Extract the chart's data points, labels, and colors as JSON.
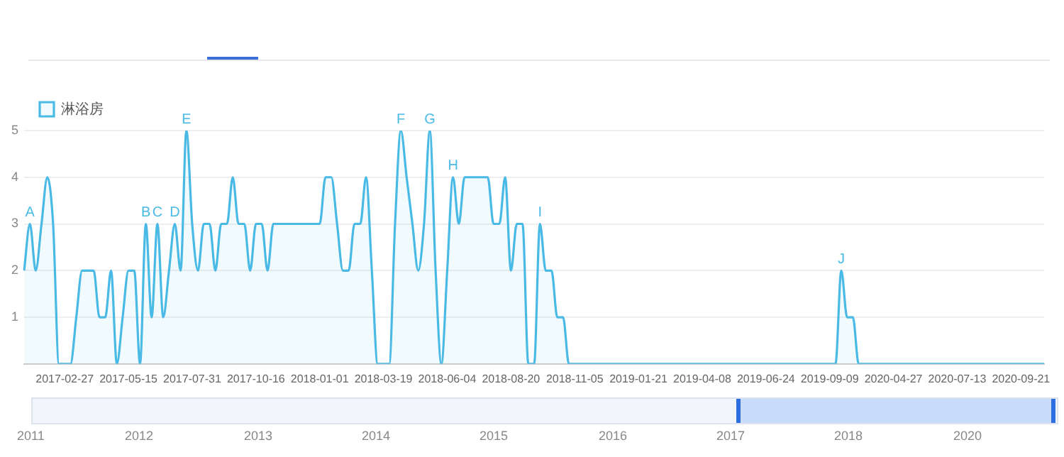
{
  "chart_data": {
    "type": "area",
    "legend": "top left",
    "grid": "y",
    "marker": "none",
    "categories": [
      null,
      null,
      null,
      null,
      null,
      null,
      null,
      "2017-02-27",
      null,
      null,
      null,
      null,
      null,
      null,
      null,
      null,
      null,
      null,
      "2017-05-15",
      null,
      null,
      null,
      null,
      null,
      null,
      null,
      null,
      null,
      null,
      "2017-07-31",
      null,
      null,
      null,
      null,
      null,
      null,
      null,
      null,
      null,
      null,
      "2017-10-16",
      null,
      null,
      null,
      null,
      null,
      null,
      null,
      null,
      null,
      null,
      "2018-01-01",
      null,
      null,
      null,
      null,
      null,
      null,
      null,
      null,
      null,
      null,
      "2018-03-19",
      null,
      null,
      null,
      null,
      null,
      null,
      null,
      null,
      null,
      null,
      "2018-06-04",
      null,
      null,
      null,
      null,
      null,
      null,
      null,
      null,
      null,
      null,
      "2018-08-20",
      null,
      null,
      null,
      null,
      null,
      null,
      null,
      null,
      null,
      null,
      "2018-11-05",
      null,
      null,
      null,
      null,
      null,
      null,
      null,
      null,
      null,
      null,
      "2019-01-21",
      null,
      null,
      null,
      null,
      null,
      null,
      null,
      null,
      null,
      null,
      "2019-04-08",
      null,
      null,
      null,
      null,
      null,
      null,
      null,
      null,
      null,
      null,
      "2019-06-24",
      null,
      null,
      null,
      null,
      null,
      null,
      null,
      null,
      null,
      null,
      "2019-09-09",
      null,
      null,
      null,
      null,
      null,
      null,
      null,
      null,
      null,
      null,
      "2020-04-27",
      null,
      null,
      null,
      null,
      null,
      null,
      null,
      null,
      null,
      null,
      "2020-07-13",
      null,
      null,
      null,
      null,
      null,
      null,
      null,
      null,
      null,
      null,
      "2020-09-21",
      null,
      null,
      null,
      null
    ],
    "series": [
      {
        "name": "淋浴房",
        "color": "#49b9e6",
        "values": [
          2,
          3,
          2,
          3,
          4,
          3,
          0,
          0,
          0,
          1,
          2,
          2,
          2,
          1,
          1,
          2,
          0,
          1,
          2,
          2,
          0,
          3,
          1,
          3,
          1,
          2,
          3,
          2,
          5,
          3,
          2,
          3,
          3,
          2,
          3,
          3,
          4,
          3,
          3,
          2,
          3,
          3,
          2,
          3,
          3,
          3,
          3,
          3,
          3,
          3,
          3,
          3,
          4,
          4,
          3,
          2,
          2,
          3,
          3,
          4,
          2,
          0,
          0,
          0,
          3,
          5,
          4,
          3,
          2,
          3,
          5,
          2,
          0,
          2,
          4,
          3,
          4,
          4,
          4,
          4,
          4,
          3,
          3,
          4,
          2,
          3,
          3,
          0,
          0,
          3,
          2,
          2,
          1,
          1,
          0,
          0,
          0,
          0,
          0,
          0,
          0,
          0,
          0,
          0,
          0,
          0,
          0,
          0,
          0,
          0,
          0,
          0,
          0,
          0,
          0,
          0,
          0,
          0,
          0,
          0,
          0,
          0,
          0,
          0,
          0,
          0,
          0,
          0,
          0,
          0,
          0,
          0,
          0,
          0,
          0,
          0,
          0,
          0,
          0,
          0,
          0,
          2,
          1,
          1,
          0,
          0,
          0,
          0,
          0,
          0,
          0,
          0,
          0,
          0,
          0,
          0,
          0,
          0,
          0,
          0,
          0,
          0,
          0,
          0,
          0,
          0,
          0,
          0,
          0,
          0,
          0,
          0,
          0,
          0,
          0,
          0,
          0
        ],
        "value_labels": [
          null,
          "A",
          null,
          null,
          null,
          null,
          null,
          null,
          null,
          null,
          null,
          null,
          null,
          null,
          null,
          null,
          null,
          null,
          null,
          null,
          null,
          "B",
          null,
          "C",
          null,
          null,
          "D",
          null,
          "E",
          null,
          null,
          null,
          null,
          null,
          null,
          null,
          null,
          null,
          null,
          null,
          null,
          null,
          null,
          null,
          null,
          null,
          null,
          null,
          null,
          null,
          null,
          null,
          null,
          null,
          null,
          null,
          null,
          null,
          null,
          null,
          null,
          null,
          null,
          null,
          null,
          "F",
          null,
          null,
          null,
          null,
          "G",
          null,
          null,
          null,
          "H",
          null,
          null,
          null,
          null,
          null,
          null,
          null,
          null,
          null,
          null,
          null,
          null,
          null,
          null,
          "I",
          null,
          null,
          null,
          null,
          null,
          null,
          null,
          null,
          null,
          null,
          null,
          null,
          null,
          null,
          null,
          null,
          null,
          null,
          null,
          null,
          null,
          null,
          null,
          null,
          null,
          null,
          null,
          null,
          null,
          null,
          null,
          null,
          null,
          null,
          null,
          null,
          null,
          null,
          null,
          null,
          null,
          null,
          null,
          null,
          null,
          null,
          null,
          null,
          null,
          null,
          null,
          "J",
          null,
          null,
          null,
          null,
          null,
          null,
          null,
          null,
          null,
          null,
          null,
          null,
          null,
          null,
          null,
          null,
          null,
          null,
          null,
          null,
          null,
          null,
          null,
          null,
          null,
          null,
          null,
          null,
          null,
          null,
          null,
          null,
          null,
          null,
          null
        ]
      }
    ],
    "ylim": [
      0,
      5
    ],
    "yticks": [
      {
        "value": 0,
        "label": null
      },
      1,
      2,
      3,
      4,
      5
    ],
    "annotations": [
      "2011",
      "2012",
      "2013",
      "2014",
      "2015",
      "2016",
      "2017",
      "2018",
      "2020"
    ]
  }
}
